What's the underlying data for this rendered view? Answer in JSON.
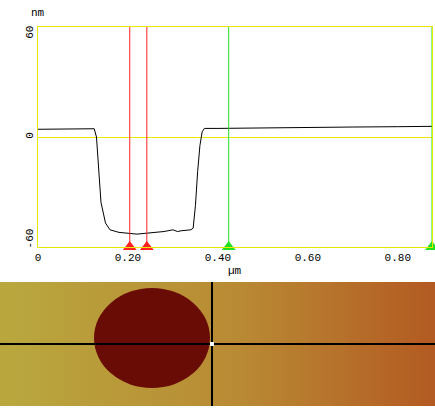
{
  "chart_data": {
    "type": "line",
    "x_label": "µm",
    "y_label": "nm",
    "x": [
      0,
      0.04,
      0.08,
      0.125,
      0.13,
      0.135,
      0.14,
      0.15,
      0.16,
      0.18,
      0.2,
      0.22,
      0.24,
      0.26,
      0.28,
      0.3,
      0.31,
      0.32,
      0.34,
      0.345,
      0.35,
      0.355,
      0.36,
      0.365,
      0.37,
      0.4,
      0.45,
      0.5,
      0.6,
      0.7,
      0.8,
      0.876
    ],
    "values": [
      4.5,
      4.5,
      4.6,
      4.8,
      0,
      -20,
      -38,
      -50,
      -54,
      -55.5,
      -56,
      -56.5,
      -56,
      -55.5,
      -55,
      -54,
      -55,
      -54.5,
      -54,
      -53,
      -40,
      -20,
      -5,
      3,
      5,
      5,
      5.2,
      5.3,
      5.5,
      5.8,
      6,
      6.2
    ],
    "color": "#000000",
    "xlim": [
      0,
      0.876
    ],
    "ylim": [
      -64,
      64
    ],
    "xticks": [
      0,
      {
        "value": 0.2,
        "label": "0.20"
      },
      {
        "value": 0.4,
        "label": "0.40"
      },
      {
        "value": 0.6,
        "label": "0.60"
      },
      {
        "value": 0.8,
        "label": "0.80"
      }
    ],
    "yticks": [
      -60,
      0,
      60
    ],
    "grid": false,
    "cursors": [
      {
        "x": 0.204,
        "color": "#ff2020"
      },
      {
        "x": 0.242,
        "color": "#ff2020"
      },
      {
        "x": 0.424,
        "color": "#20e020"
      },
      {
        "x": 0.876,
        "color": "#20e020"
      }
    ]
  }
}
